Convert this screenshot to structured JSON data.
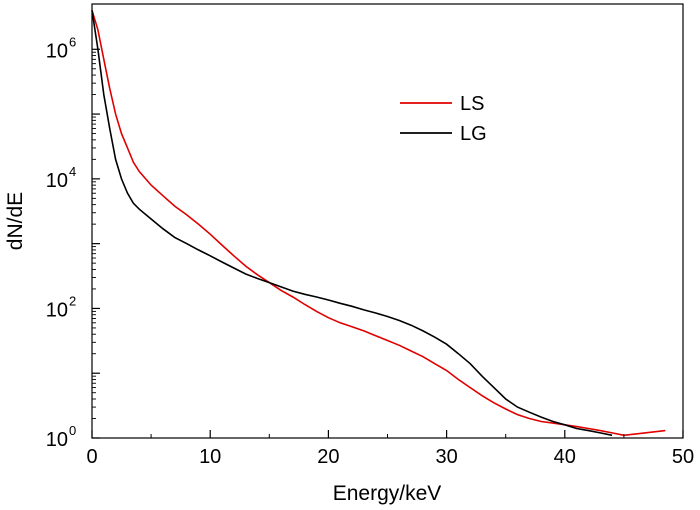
{
  "chart_data": {
    "type": "line",
    "xlabel": "Energy/keV",
    "ylabel": "dN/dE",
    "xlim": [
      0,
      50
    ],
    "ylim": [
      1,
      5000000
    ],
    "yscale": "log",
    "xticks": [
      0,
      10,
      20,
      30,
      40,
      50
    ],
    "yticks": [
      {
        "base": "10",
        "exp": "0",
        "value": 1
      },
      {
        "base": "10",
        "exp": "2",
        "value": 100
      },
      {
        "base": "10",
        "exp": "4",
        "value": 10000
      },
      {
        "base": "10",
        "exp": "6",
        "value": 1000000
      }
    ],
    "grid": false,
    "legend_position": "upper-middle",
    "series": [
      {
        "name": "LS",
        "color": "#e00000",
        "x": [
          0,
          0.5,
          1,
          1.5,
          2,
          2.5,
          3,
          3.5,
          4,
          5,
          6,
          7,
          8,
          9,
          10,
          11,
          12,
          13,
          14,
          15,
          16,
          17,
          18,
          19,
          20,
          21,
          22,
          23,
          24,
          25,
          26,
          27,
          28,
          29,
          30,
          31,
          32,
          33,
          34,
          35,
          36,
          37,
          38,
          39,
          40,
          41,
          42,
          43,
          44,
          45,
          48.5
        ],
        "y": [
          4000000,
          2000000,
          700000,
          250000,
          100000,
          50000,
          30000,
          18000,
          13000,
          8000,
          5500,
          3800,
          2800,
          2000,
          1400,
          950,
          650,
          450,
          330,
          250,
          190,
          150,
          115,
          90,
          72,
          60,
          52,
          45,
          38,
          32,
          27,
          22,
          18,
          14,
          11,
          8,
          6,
          4.5,
          3.5,
          2.8,
          2.3,
          2,
          1.8,
          1.7,
          1.6,
          1.5,
          1.4,
          1.3,
          1.2,
          1.1,
          1.3
        ]
      },
      {
        "name": "LG",
        "color": "#000000",
        "x": [
          0,
          0.5,
          1,
          1.5,
          2,
          2.5,
          3,
          3.5,
          4,
          5,
          6,
          7,
          8,
          9,
          10,
          11,
          12,
          13,
          14,
          15,
          16,
          17,
          18,
          19,
          20,
          21,
          22,
          23,
          24,
          25,
          26,
          27,
          28,
          29,
          30,
          31,
          32,
          33,
          34,
          35,
          36,
          37,
          38,
          39,
          40,
          41,
          42,
          43,
          44
        ],
        "y": [
          4000000,
          1000000,
          200000,
          60000,
          20000,
          10000,
          6000,
          4200,
          3400,
          2400,
          1700,
          1250,
          1000,
          800,
          650,
          520,
          420,
          340,
          290,
          250,
          215,
          185,
          165,
          150,
          135,
          120,
          108,
          95,
          85,
          75,
          65,
          55,
          45,
          36,
          28,
          20,
          14,
          9,
          6,
          4,
          3,
          2.5,
          2.1,
          1.8,
          1.6,
          1.4,
          1.3,
          1.2,
          1.1
        ]
      }
    ]
  }
}
